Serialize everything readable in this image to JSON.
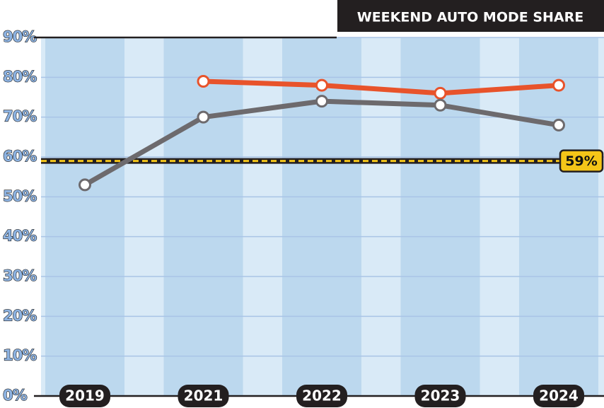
{
  "chart_data": {
    "type": "line",
    "title": "WEEKEND AUTO MODE SHARE",
    "categories": [
      "2019",
      "2021",
      "2022",
      "2023",
      "2024"
    ],
    "series": [
      {
        "color": "#e8532b",
        "values": [
          null,
          79,
          78,
          76,
          78
        ]
      },
      {
        "color": "#6d6a6d",
        "values": [
          53,
          70,
          74,
          73,
          68
        ]
      }
    ],
    "ylim": [
      0,
      90
    ],
    "yticks": [
      {
        "value": 0,
        "label": "0%"
      },
      {
        "value": 10,
        "label": "10%"
      },
      {
        "value": 20,
        "label": "20%"
      },
      {
        "value": 30,
        "label": "30%"
      },
      {
        "value": 40,
        "label": "40%"
      },
      {
        "value": 50,
        "label": "50%"
      },
      {
        "value": 60,
        "label": "60%"
      },
      {
        "value": 70,
        "label": "70%"
      },
      {
        "value": 80,
        "label": "80%"
      },
      {
        "value": 90,
        "label": "90%"
      }
    ],
    "grid": true,
    "reference": {
      "value": 59,
      "label": "59%",
      "color": "#f5c518"
    }
  }
}
